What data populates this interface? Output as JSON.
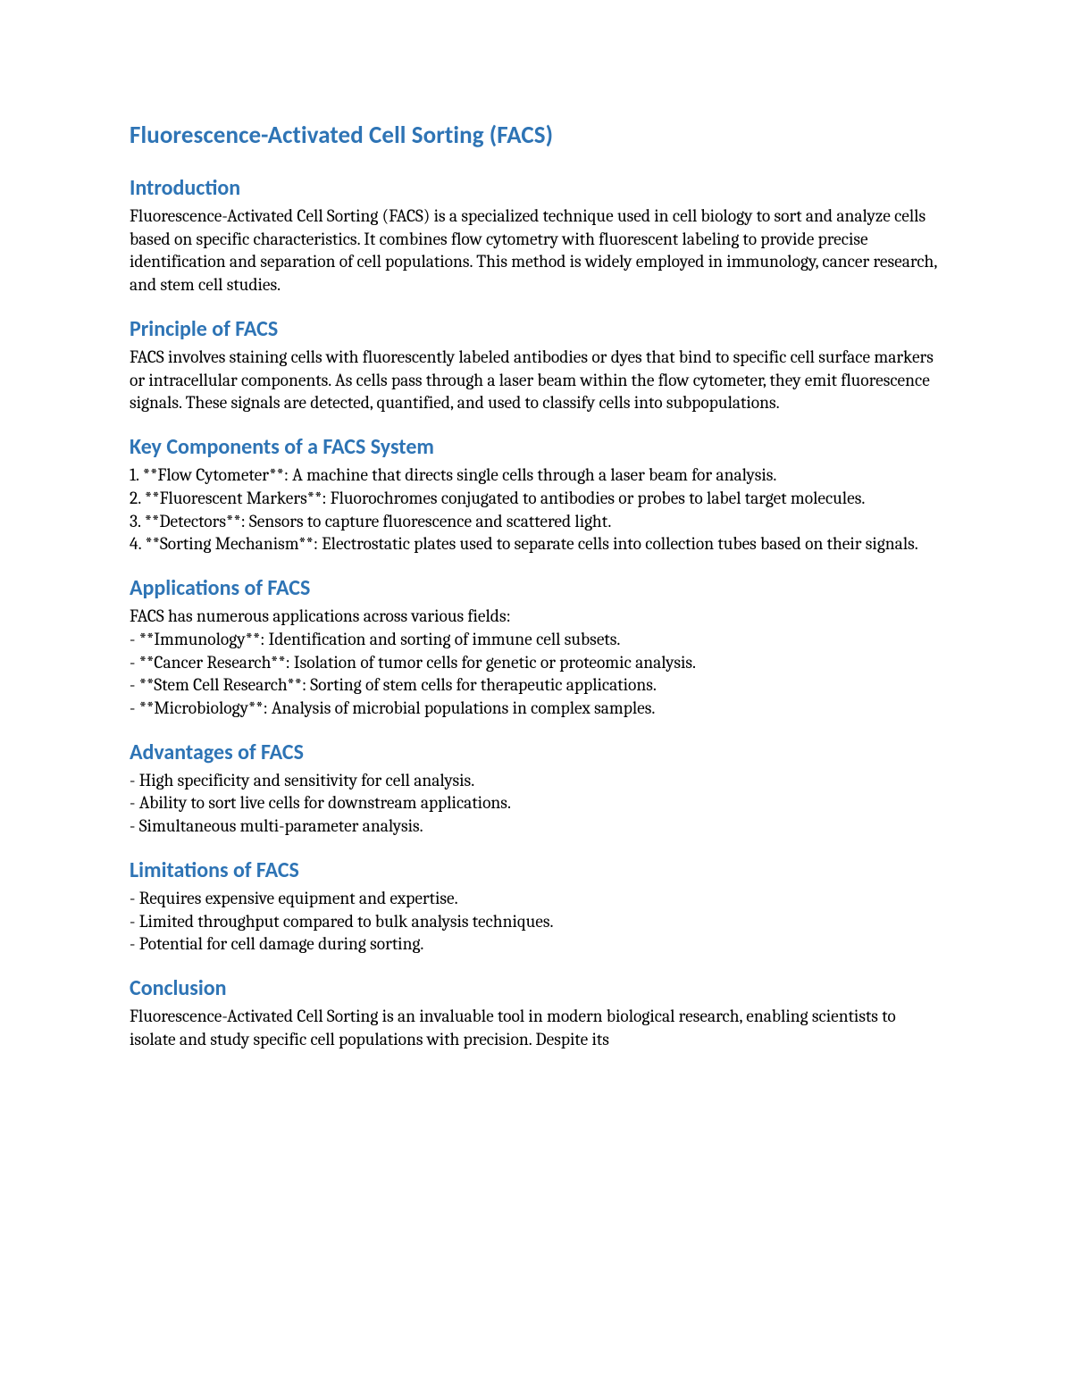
{
  "colors": {
    "heading": "#2e74b5",
    "body": "#000000",
    "background": "#ffffff"
  },
  "typography": {
    "heading_font": "Calibri",
    "body_font": "Cambria",
    "title_size_pt": 20,
    "section_size_pt": 18,
    "body_size_pt": 14.5
  },
  "title": "Fluorescence-Activated Cell Sorting (FACS)",
  "sections": {
    "intro": {
      "heading": "Introduction",
      "text": "Fluorescence-Activated Cell Sorting (FACS) is a specialized technique used in cell biology to sort and analyze cells based on specific characteristics. It combines flow cytometry with fluorescent labeling to provide precise identification and separation of cell populations. This method is widely employed in immunology, cancer research, and stem cell studies."
    },
    "principle": {
      "heading": "Principle of FACS",
      "text": "FACS involves staining cells with fluorescently labeled antibodies or dyes that bind to specific cell surface markers or intracellular components. As cells pass through a laser beam within the flow cytometer, they emit fluorescence signals. These signals are detected, quantified, and used to classify cells into subpopulations."
    },
    "components": {
      "heading": "Key Components of a FACS System",
      "lines": [
        "1. **Flow Cytometer**: A machine that directs single cells through a laser beam for analysis.",
        "2. **Fluorescent Markers**: Fluorochromes conjugated to antibodies or probes to label target molecules.",
        "3. **Detectors**: Sensors to capture fluorescence and scattered light.",
        "4. **Sorting Mechanism**: Electrostatic plates used to separate cells into collection tubes based on their signals."
      ]
    },
    "applications": {
      "heading": "Applications of FACS",
      "lines": [
        "FACS has numerous applications across various fields:",
        "- **Immunology**: Identification and sorting of immune cell subsets.",
        "- **Cancer Research**: Isolation of tumor cells for genetic or proteomic analysis.",
        "- **Stem Cell Research**: Sorting of stem cells for therapeutic applications.",
        "- **Microbiology**: Analysis of microbial populations in complex samples."
      ]
    },
    "advantages": {
      "heading": "Advantages of FACS",
      "lines": [
        "- High specificity and sensitivity for cell analysis.",
        "- Ability to sort live cells for downstream applications.",
        "- Simultaneous multi-parameter analysis."
      ]
    },
    "limitations": {
      "heading": "Limitations of FACS",
      "lines": [
        "- Requires expensive equipment and expertise.",
        "- Limited throughput compared to bulk analysis techniques.",
        "- Potential for cell damage during sorting."
      ]
    },
    "conclusion": {
      "heading": "Conclusion",
      "text": "Fluorescence-Activated Cell Sorting is an invaluable tool in modern biological research, enabling scientists to isolate and study specific cell populations with precision. Despite its"
    }
  }
}
